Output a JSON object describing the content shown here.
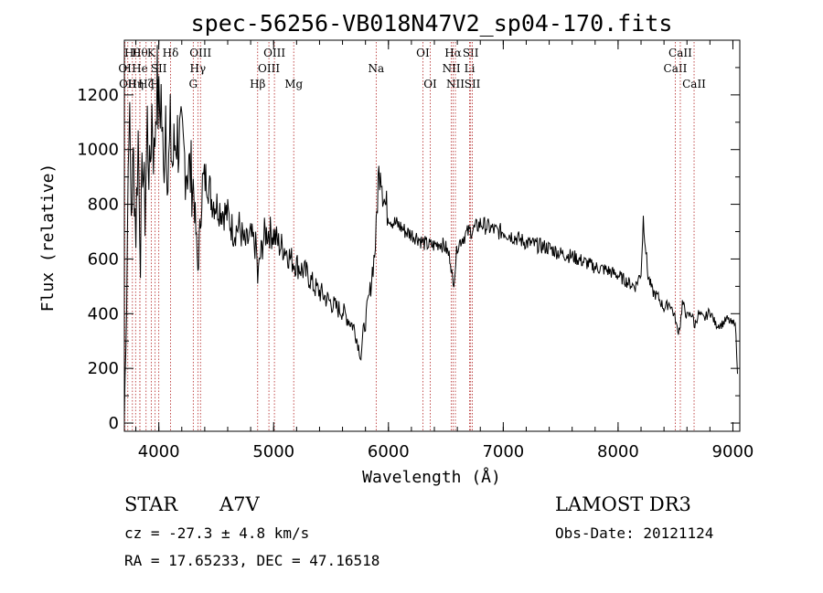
{
  "chart_data": {
    "type": "line",
    "title": "spec-56256-VB018N47V2_sp04-170.fits",
    "xlabel": "Wavelength (Å)",
    "ylabel": "Flux (relative)",
    "xlim": [
      3700,
      9060
    ],
    "ylim": [
      -30,
      1400
    ],
    "x_ticks": [
      4000,
      5000,
      6000,
      7000,
      8000,
      9000
    ],
    "y_ticks": [
      0,
      200,
      400,
      600,
      800,
      1000,
      1200
    ],
    "grid": false,
    "series": [
      {
        "name": "spectrum",
        "x": [
          3700,
          3720,
          3740,
          3760,
          3780,
          3800,
          3820,
          3840,
          3860,
          3880,
          3900,
          3920,
          3940,
          3960,
          3980,
          4000,
          4020,
          4040,
          4060,
          4080,
          4100,
          4120,
          4150,
          4200,
          4250,
          4300,
          4340,
          4380,
          4420,
          4460,
          4500,
          4550,
          4600,
          4650,
          4700,
          4750,
          4800,
          4850,
          4861,
          4880,
          4920,
          4960,
          5000,
          5050,
          5100,
          5150,
          5200,
          5250,
          5300,
          5350,
          5400,
          5450,
          5500,
          5550,
          5600,
          5650,
          5700,
          5740,
          5760,
          5780,
          5800,
          5820,
          5840,
          5860,
          5880,
          5893,
          5910,
          5930,
          5950,
          5970,
          5990,
          6000,
          6030,
          6060,
          6100,
          6150,
          6200,
          6250,
          6300,
          6350,
          6400,
          6450,
          6500,
          6540,
          6563,
          6580,
          6600,
          6650,
          6700,
          6750,
          6800,
          6850,
          6900,
          6950,
          7000,
          7100,
          7200,
          7300,
          7400,
          7500,
          7600,
          7700,
          7800,
          7900,
          8000,
          8100,
          8150,
          8200,
          8220,
          8260,
          8300,
          8350,
          8400,
          8450,
          8500,
          8520,
          8542,
          8560,
          8600,
          8650,
          8662,
          8700,
          8750,
          8800,
          8850,
          8900,
          8950,
          9000,
          9020,
          9040
        ],
        "y": [
          30,
          450,
          1180,
          780,
          960,
          700,
          1050,
          620,
          980,
          760,
          1100,
          880,
          1150,
          960,
          1260,
          1130,
          1200,
          900,
          1180,
          870,
          1050,
          940,
          1060,
          1000,
          940,
          880,
          560,
          880,
          900,
          820,
          800,
          780,
          760,
          700,
          720,
          650,
          680,
          640,
          520,
          600,
          690,
          700,
          690,
          650,
          640,
          600,
          580,
          560,
          540,
          500,
          480,
          460,
          440,
          420,
          410,
          380,
          350,
          280,
          240,
          330,
          370,
          430,
          480,
          560,
          620,
          700,
          880,
          960,
          860,
          800,
          780,
          760,
          740,
          730,
          720,
          700,
          690,
          680,
          660,
          650,
          650,
          660,
          640,
          600,
          500,
          560,
          650,
          680,
          700,
          710,
          730,
          720,
          710,
          700,
          700,
          680,
          660,
          650,
          640,
          620,
          610,
          590,
          570,
          560,
          540,
          510,
          500,
          550,
          750,
          540,
          480,
          460,
          420,
          440,
          380,
          330,
          360,
          440,
          390,
          400,
          350,
          400,
          380,
          410,
          360,
          360,
          380,
          360,
          380,
          180
        ]
      }
    ],
    "annotations": [
      {
        "x": 3705,
        "label": "OI",
        "row": 2
      },
      {
        "x": 3730,
        "label": "OII",
        "row": 3
      },
      {
        "x": 3770,
        "label": "Hθ",
        "row": 1
      },
      {
        "x": 3798,
        "label": "Hη",
        "row": 3
      },
      {
        "x": 3835,
        "label": "Hθ",
        "row": 1
      },
      {
        "x": 3835,
        "label": "He",
        "row": 2
      },
      {
        "x": 3889,
        "label": "Hζ",
        "row": 3
      },
      {
        "x": 3934,
        "label": "K",
        "row": 1
      },
      {
        "x": 3968,
        "label": "H",
        "row": 3
      },
      {
        "x": 4000,
        "label": "SII",
        "row": 2
      },
      {
        "x": 4102,
        "label": "Hδ",
        "row": 1
      },
      {
        "x": 4300,
        "label": "G",
        "row": 3
      },
      {
        "x": 4340,
        "label": "Hγ",
        "row": 2
      },
      {
        "x": 4363,
        "label": "OIII",
        "row": 1
      },
      {
        "x": 4861,
        "label": "Hβ",
        "row": 3
      },
      {
        "x": 4959,
        "label": "OIII",
        "row": 2
      },
      {
        "x": 5007,
        "label": "OIII",
        "row": 1
      },
      {
        "x": 5175,
        "label": "Mg",
        "row": 3
      },
      {
        "x": 5893,
        "label": "Na",
        "row": 2
      },
      {
        "x": 6300,
        "label": "OI",
        "row": 1
      },
      {
        "x": 6364,
        "label": "OI",
        "row": 3
      },
      {
        "x": 6548,
        "label": "NII",
        "row": 2
      },
      {
        "x": 6563,
        "label": "Hα",
        "row": 1
      },
      {
        "x": 6583,
        "label": "NII",
        "row": 3
      },
      {
        "x": 6707,
        "label": "Li",
        "row": 2
      },
      {
        "x": 6716,
        "label": "SII",
        "row": 1
      },
      {
        "x": 6731,
        "label": "SII",
        "row": 3
      },
      {
        "x": 8498,
        "label": "CaII",
        "row": 2
      },
      {
        "x": 8542,
        "label": "CaII",
        "row": 1
      },
      {
        "x": 8662,
        "label": "CaII",
        "row": 3
      }
    ]
  },
  "info": {
    "object_class": "STAR",
    "subclass": "A7V",
    "survey": "LAMOST DR3",
    "redshift": "cz = -27.3 ± 4.8 km/s",
    "obs_date": "Obs-Date: 20121124",
    "coords": "RA =  17.65233, DEC =  47.16518"
  }
}
